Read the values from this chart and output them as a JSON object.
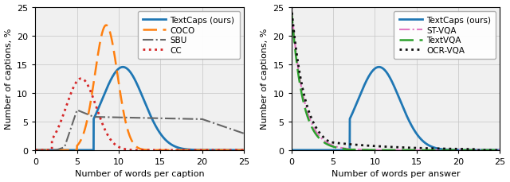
{
  "left_xlabel": "Number of words per caption",
  "left_ylabel": "Number of captions, %",
  "right_xlabel": "Number of words per answer",
  "right_ylabel": "Number of captions, %",
  "xlim": [
    0,
    25
  ],
  "ylim": [
    0,
    25
  ],
  "yticks": [
    0,
    5,
    10,
    15,
    20,
    25
  ],
  "xticks": [
    0,
    5,
    10,
    15,
    20,
    25
  ],
  "grid_color": "#c8c8c8",
  "grid_alpha": 0.8,
  "background_color": "#f0f0f0",
  "legend_fontsize": 7.5,
  "axis_fontsize": 8,
  "tick_fontsize": 8,
  "textcaps_color": "#1f77b4",
  "coco_color": "#ff7f0e",
  "sbu_color": "#666666",
  "cc_color": "#d62728",
  "stvqa_color": "#e377c2",
  "textvqa_color": "#2ca02c",
  "ocrvqa_color": "#111111"
}
